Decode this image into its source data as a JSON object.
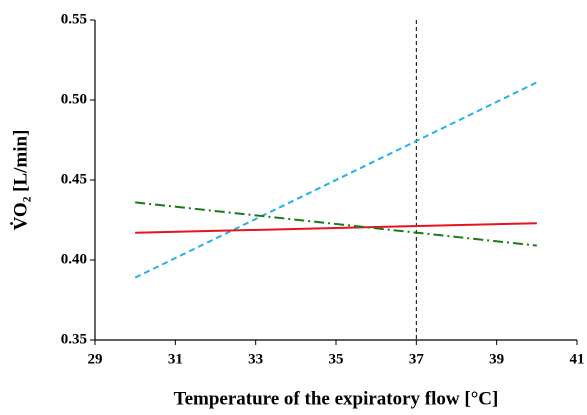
{
  "chart_data": {
    "type": "line",
    "x_label": "Temperature of the expiratory flow [°C]",
    "y_label": "V̇O₂ [L/min]",
    "x": [
      30,
      40
    ],
    "series": [
      {
        "color": "#1fb3e8",
        "dash": "6,4",
        "values": [
          0.389,
          0.511
        ]
      },
      {
        "color": "#e8141c",
        "dash": "none",
        "values": [
          0.417,
          0.423
        ]
      },
      {
        "color": "#1a7a1a",
        "dash": "10,4,2,4",
        "values": [
          0.436,
          0.409
        ]
      }
    ],
    "reference_x": 37,
    "xlim": [
      29,
      41
    ],
    "xticks": [
      29,
      31,
      33,
      35,
      37,
      39,
      41
    ],
    "ylim": [
      0.35,
      0.55
    ],
    "yticks": [
      0.35,
      {
        "value": 0.4,
        "label": "0.40"
      },
      0.45,
      {
        "value": 0.5,
        "label": "0.50"
      },
      0.55
    ]
  }
}
